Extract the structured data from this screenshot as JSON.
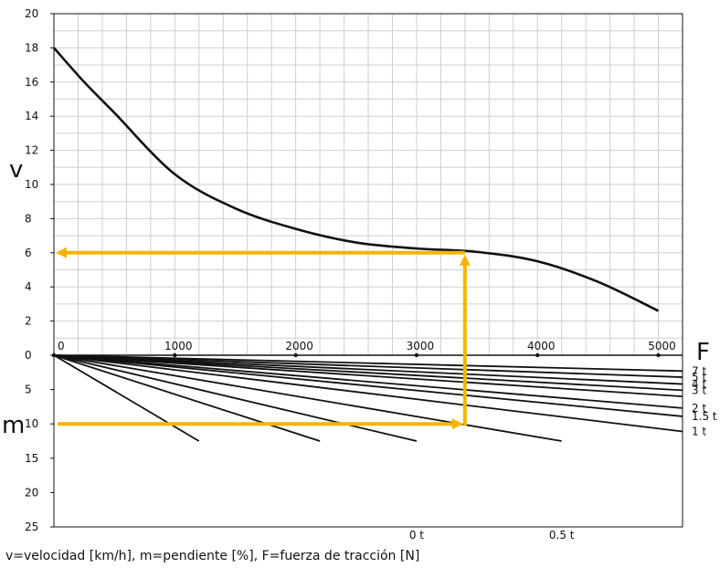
{
  "chart_data": {
    "type": "line",
    "top_panel": {
      "y_label": "v",
      "x_label": "F",
      "y_range": [
        0,
        20
      ],
      "x_range": [
        0,
        5200
      ],
      "y_ticks": [
        "0",
        "2",
        "4",
        "6",
        "8",
        "10",
        "12",
        "14",
        "16",
        "18",
        "20"
      ],
      "x_ticks": [
        "0",
        "1000",
        "2000",
        "3000",
        "4000",
        "5000"
      ],
      "curve": [
        {
          "x": 0,
          "y": 18.0
        },
        {
          "x": 250,
          "y": 16.0
        },
        {
          "x": 500,
          "y": 14.2
        },
        {
          "x": 1000,
          "y": 10.6
        },
        {
          "x": 1500,
          "y": 8.6
        },
        {
          "x": 2000,
          "y": 7.4
        },
        {
          "x": 2500,
          "y": 6.6
        },
        {
          "x": 3000,
          "y": 6.25
        },
        {
          "x": 3500,
          "y": 6.05
        },
        {
          "x": 4000,
          "y": 5.5
        },
        {
          "x": 4500,
          "y": 4.3
        },
        {
          "x": 5000,
          "y": 2.6
        }
      ],
      "grid": true
    },
    "bottom_panel": {
      "y_label": "m",
      "y_range": [
        0,
        25
      ],
      "y_ticks": [
        "0",
        "5",
        "10",
        "15",
        "20",
        "25"
      ],
      "lines": [
        {
          "label": "7 t",
          "end": {
            "x": 5200,
            "y": 2.3
          }
        },
        {
          "label": "5 t",
          "end": {
            "x": 5200,
            "y": 3.2
          }
        },
        {
          "label": "4 t",
          "end": {
            "x": 5200,
            "y": 4.2
          }
        },
        {
          "label": "3 t",
          "end": {
            "x": 5200,
            "y": 5.1
          }
        },
        {
          "label": "2 t",
          "end": {
            "x": 5200,
            "y": 7.7
          }
        },
        {
          "label": "1.5 t",
          "end": {
            "x": 5200,
            "y": 8.9
          }
        },
        {
          "label": "1 t",
          "end": {
            "x": 5200,
            "y": 11.1
          }
        },
        {
          "label": "0.5 t",
          "end": {
            "x": 4200,
            "y": 12.5
          }
        },
        {
          "label": "0 t",
          "end": {
            "x": 3000,
            "y": 12.5
          }
        }
      ],
      "unlabeled_lines": [
        {
          "end": {
            "x": 5200,
            "y": 6.0
          }
        },
        {
          "end": {
            "x": 2200,
            "y": 12.5
          }
        },
        {
          "end": {
            "x": 1200,
            "y": 12.5
          }
        }
      ]
    },
    "annotation": {
      "color": "#f5b400",
      "vertical_x": 3400,
      "m_value": 10,
      "v_value": 6
    },
    "caption": "v=velocidad [km/h], m=pendiente [%], F=fuerza de tracción [N]"
  }
}
